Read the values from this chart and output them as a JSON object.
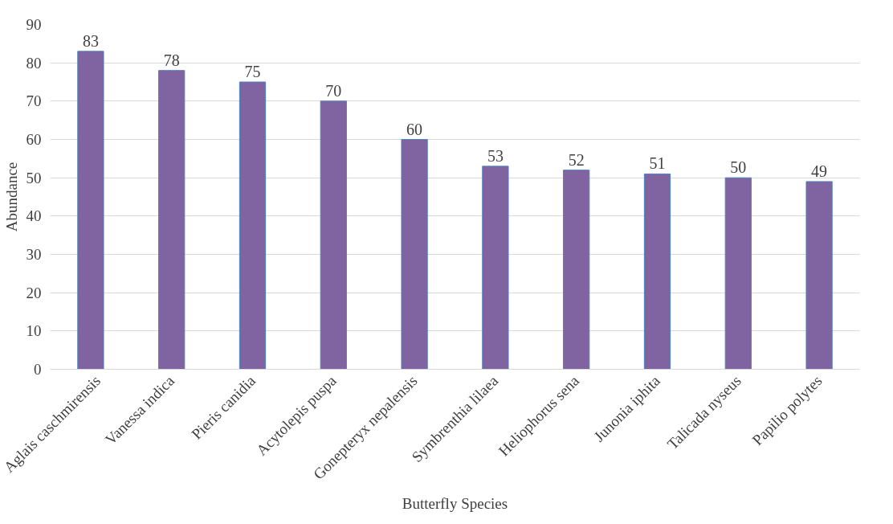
{
  "chart_data": {
    "type": "bar",
    "categories": [
      "Aglais caschmirensis",
      "Vanessa indica",
      "Pieris canidia",
      "Acytolepis puspa",
      "Gonepteryx nepalensis",
      "Symbrenthia lilaea",
      "Heliophorus sena",
      "Junonia iphita",
      "Talicada nyseus",
      "Papilio polytes"
    ],
    "values": [
      83,
      78,
      75,
      70,
      60,
      53,
      52,
      51,
      50,
      49
    ],
    "color": "#8064a2",
    "xlabel": "Butterfly Species",
    "ylabel": "Abundance",
    "ylim": [
      0,
      90
    ],
    "yticks": [
      0,
      10,
      20,
      30,
      40,
      50,
      60,
      70,
      80,
      90
    ],
    "grid": "y",
    "data_labels": true
  }
}
